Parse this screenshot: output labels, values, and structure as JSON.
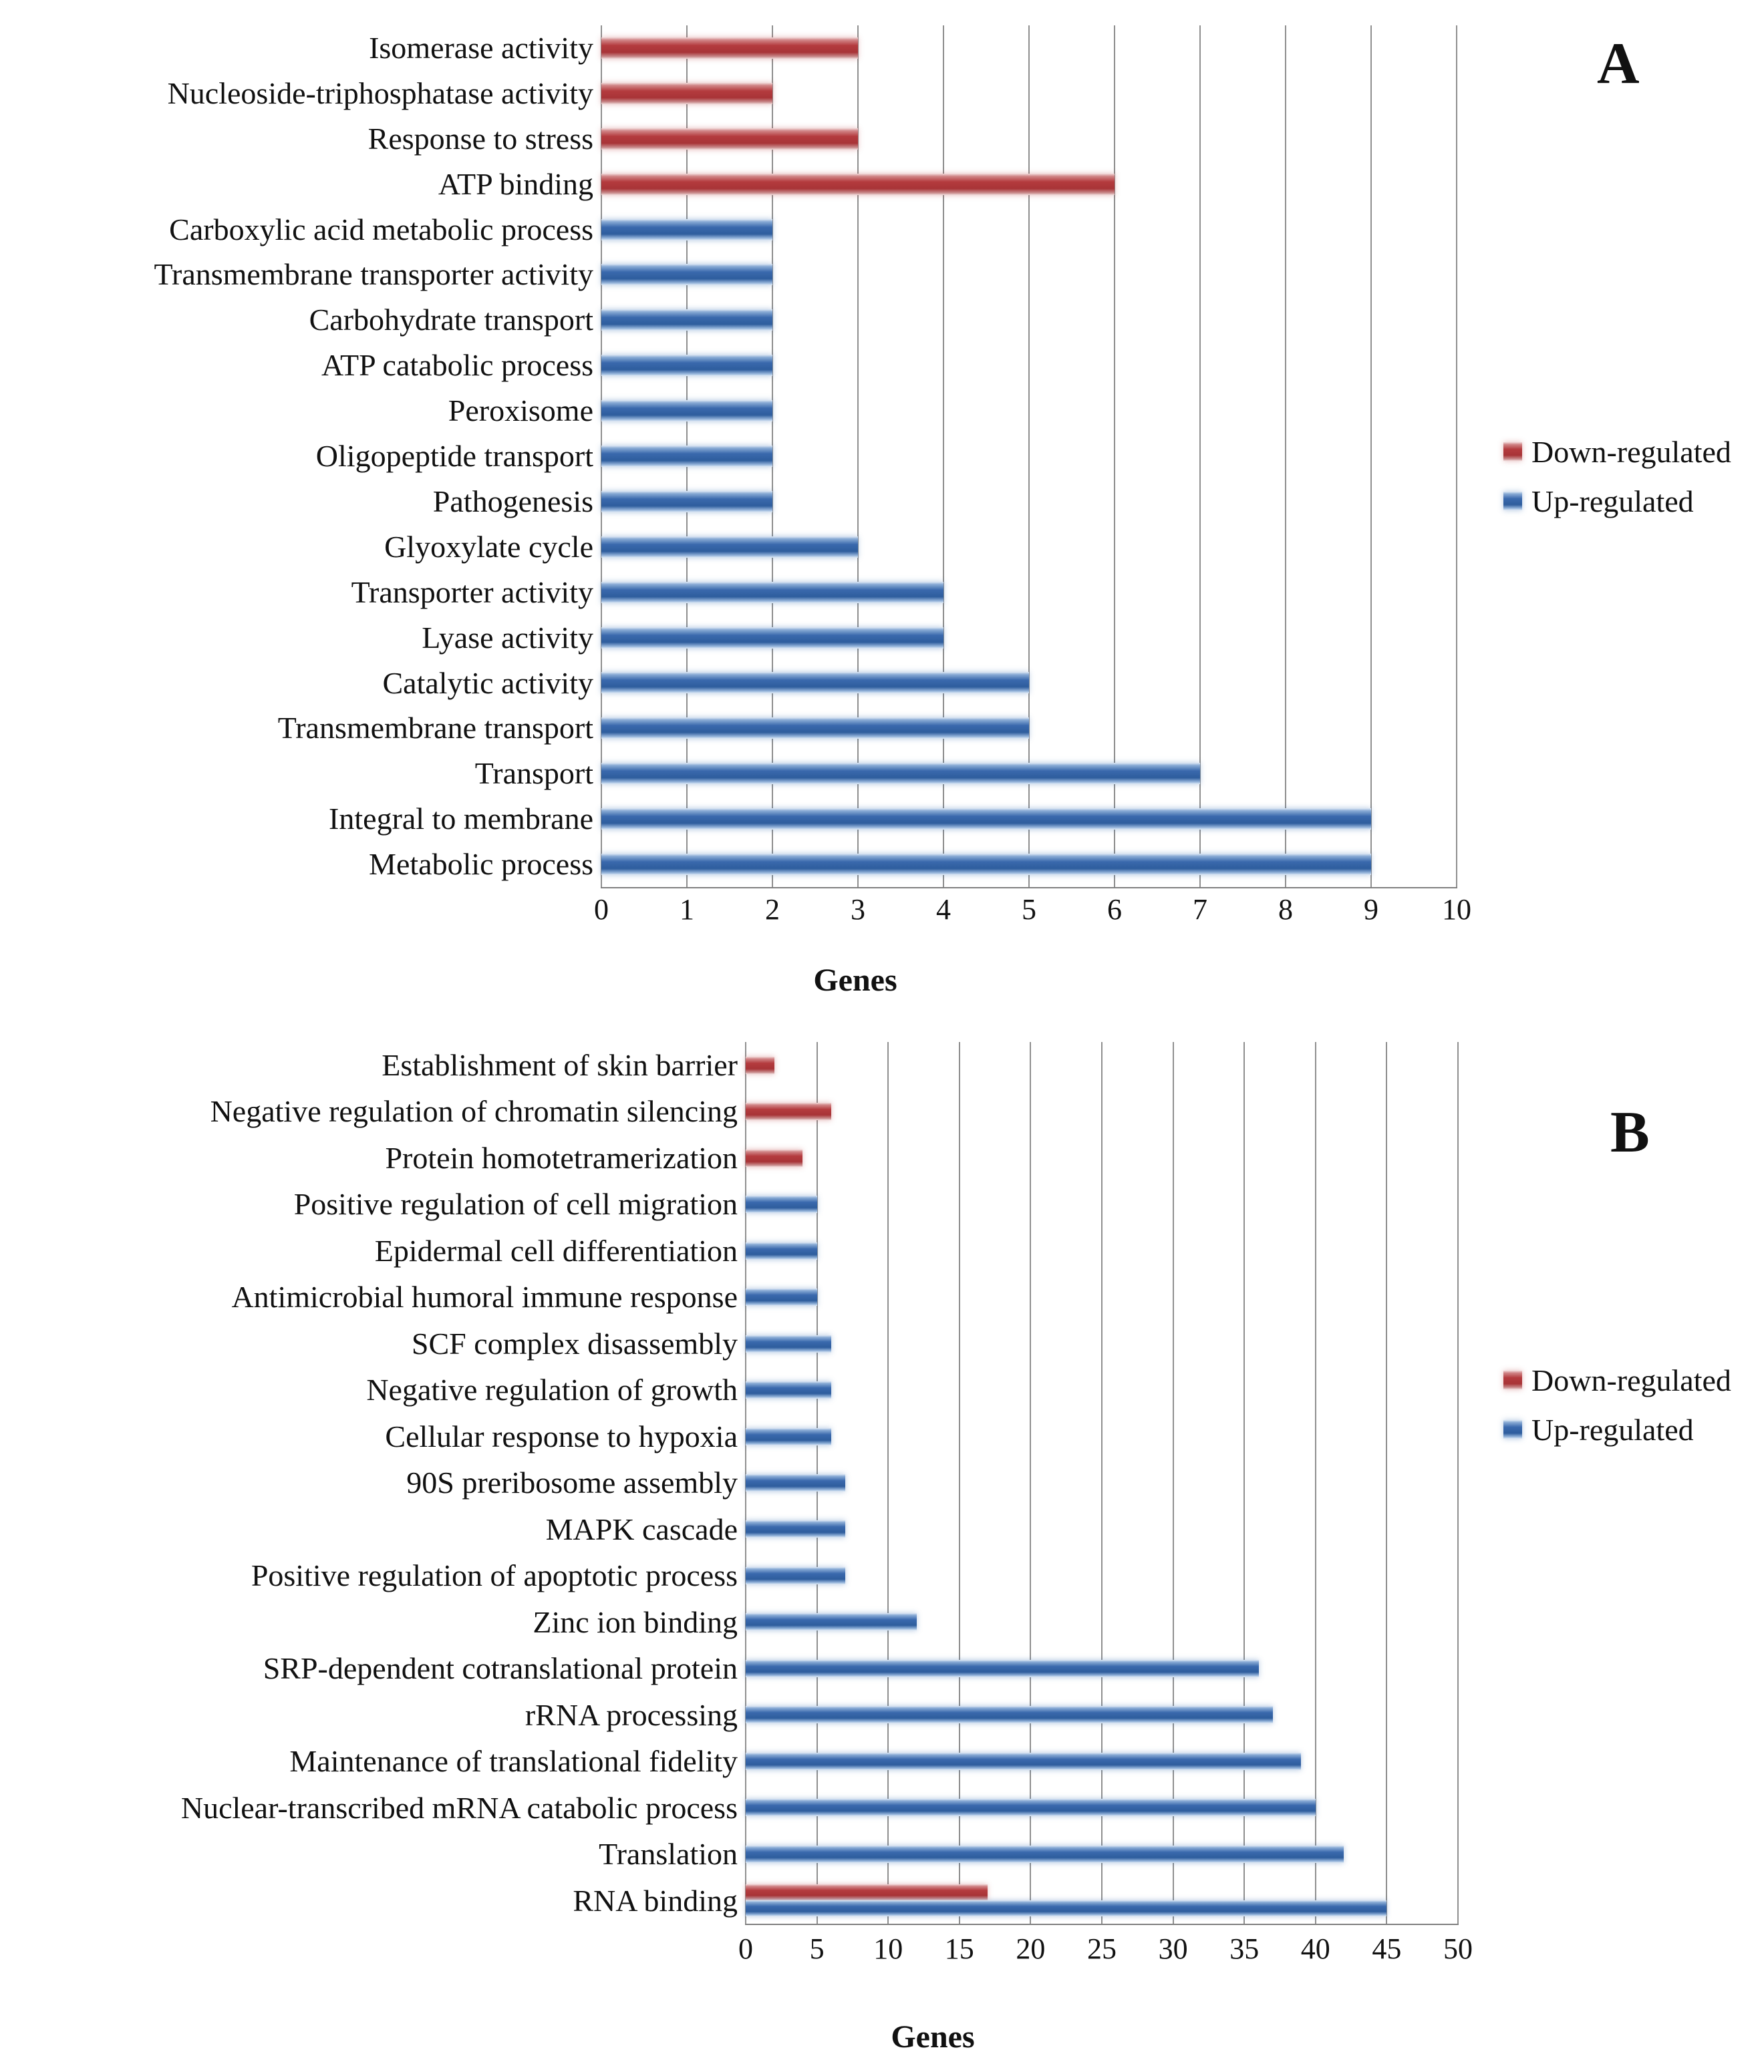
{
  "colors": {
    "down_regulated": "#b43b3e",
    "up_regulated": "#2f64a8",
    "gridline": "#8f8f8f",
    "background": "#ffffff"
  },
  "chart_data": [
    {
      "type": "bar",
      "orientation": "horizontal",
      "panel_label": "A",
      "title": "",
      "xlabel": "Genes",
      "ylabel": "",
      "xlim": [
        0,
        10
      ],
      "xticks": [
        0,
        1,
        2,
        3,
        4,
        5,
        6,
        7,
        8,
        9,
        10
      ],
      "grid": true,
      "legend_position": "right",
      "legend": [
        {
          "name": "Down-regulated",
          "color": "#b43b3e"
        },
        {
          "name": "Up-regulated",
          "color": "#2f64a8"
        }
      ],
      "categories": [
        "Isomerase activity",
        "Nucleoside-triphosphatase activity",
        "Response to stress",
        "ATP binding",
        "Carboxylic acid metabolic process",
        "Transmembrane transporter activity",
        "Carbohydrate transport",
        "ATP catabolic process",
        "Peroxisome",
        "Oligopeptide transport",
        "Pathogenesis",
        "Glyoxylate cycle",
        "Transporter activity",
        "Lyase activity",
        "Catalytic activity",
        "Transmembrane transport",
        "Transport",
        "Integral to membrane",
        "Metabolic process"
      ],
      "series": [
        {
          "name": "Down-regulated",
          "values": [
            3,
            2,
            3,
            6,
            0,
            0,
            0,
            0,
            0,
            0,
            0,
            0,
            0,
            0,
            0,
            0,
            0,
            0,
            0
          ]
        },
        {
          "name": "Up-regulated",
          "values": [
            0,
            0,
            0,
            0,
            2,
            2,
            2,
            2,
            2,
            2,
            2,
            3,
            4,
            4,
            5,
            5,
            7,
            9,
            9
          ]
        }
      ]
    },
    {
      "type": "bar",
      "orientation": "horizontal",
      "panel_label": "B",
      "title": "",
      "xlabel": "Genes",
      "ylabel": "",
      "xlim": [
        0,
        50
      ],
      "xticks": [
        0,
        5,
        10,
        15,
        20,
        25,
        30,
        35,
        40,
        45,
        50
      ],
      "grid": true,
      "legend_position": "right",
      "legend": [
        {
          "name": "Down-regulated",
          "color": "#b43b3e"
        },
        {
          "name": "Up-regulated",
          "color": "#2f64a8"
        }
      ],
      "categories": [
        "Establishment of skin barrier",
        "Negative regulation of chromatin silencing",
        "Protein homotetramerization",
        "Positive regulation of cell migration",
        "Epidermal cell differentiation",
        "Antimicrobial humoral immune response",
        "SCF complex disassembly",
        "Negative regulation of growth",
        "Cellular response to hypoxia",
        "90S preribosome assembly",
        "MAPK cascade",
        "Positive regulation of apoptotic process",
        "Zinc ion binding",
        "SRP-dependent cotranslational protein",
        "rRNA processing",
        "Maintenance of translational fidelity",
        "Nuclear-transcribed mRNA catabolic process",
        "Translation",
        "RNA binding"
      ],
      "series": [
        {
          "name": "Down-regulated",
          "values": [
            2,
            6,
            4,
            0,
            0,
            0,
            0,
            0,
            0,
            0,
            0,
            0,
            0,
            0,
            0,
            0,
            0,
            0,
            17
          ]
        },
        {
          "name": "Up-regulated",
          "values": [
            0,
            0,
            0,
            5,
            5,
            5,
            6,
            6,
            6,
            7,
            7,
            7,
            12,
            36,
            37,
            39,
            40,
            42,
            45
          ]
        }
      ]
    }
  ]
}
